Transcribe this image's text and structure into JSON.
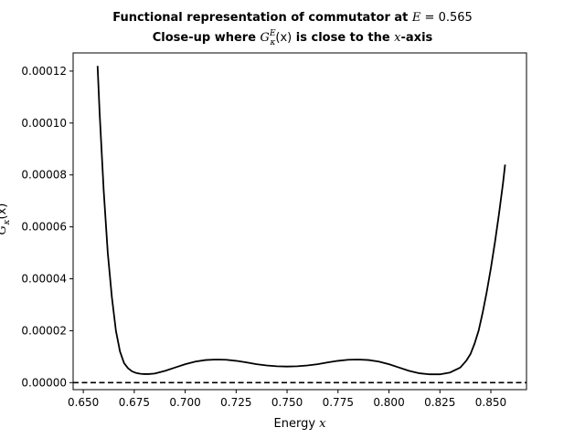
{
  "chart_data": {
    "type": "line",
    "title_line1": {
      "text": "Functional representation of commutator at ",
      "math_var": "E",
      "math_rest": " = 0.565"
    },
    "title_line2": {
      "pre": "Close-up where ",
      "G": "G",
      "sup": "E",
      "sub": "κ",
      "arg": "(x)",
      "mid": " is close to the ",
      "xvar": "x",
      "post": "-axis"
    },
    "xlabel": {
      "text": "Energy ",
      "math_var": "x"
    },
    "ylabel": {
      "G": "G",
      "sup": "E",
      "sub": "κ",
      "arg": "(x)"
    },
    "xlim": [
      0.645,
      0.8675
    ],
    "ylim": [
      -2.7e-06,
      0.000127
    ],
    "xticks": [
      0.65,
      0.675,
      0.7,
      0.725,
      0.75,
      0.775,
      0.8,
      0.825,
      0.85
    ],
    "xtick_labels": [
      "0.650",
      "0.675",
      "0.700",
      "0.725",
      "0.750",
      "0.775",
      "0.800",
      "0.825",
      "0.850"
    ],
    "yticks": [
      0,
      2e-05,
      4e-05,
      6e-05,
      8e-05,
      0.0001,
      0.00012
    ],
    "ytick_labels": [
      "0.00000",
      "0.00002",
      "0.00004",
      "0.00006",
      "0.00008",
      "0.00010",
      "0.00012"
    ],
    "grid": false,
    "colors": {
      "curve": "#000000",
      "zero_line": "#000000"
    },
    "series": [
      {
        "style": "solid",
        "x": [
          0.657,
          0.658,
          0.66,
          0.662,
          0.664,
          0.666,
          0.668,
          0.67,
          0.672,
          0.674,
          0.676,
          0.678,
          0.68,
          0.682,
          0.685,
          0.69,
          0.695,
          0.7,
          0.705,
          0.71,
          0.715,
          0.72,
          0.725,
          0.73,
          0.735,
          0.74,
          0.745,
          0.75,
          0.755,
          0.76,
          0.765,
          0.77,
          0.775,
          0.78,
          0.785,
          0.79,
          0.795,
          0.8,
          0.805,
          0.81,
          0.815,
          0.82,
          0.825,
          0.83,
          0.835,
          0.838,
          0.84,
          0.842,
          0.844,
          0.846,
          0.848,
          0.85,
          0.852,
          0.854,
          0.856,
          0.857
        ],
        "y": [
          0.000122,
          0.000104,
          7.4e-05,
          5e-05,
          3.3e-05,
          2e-05,
          1.2e-05,
          7.5e-06,
          5.5e-06,
          4.3e-06,
          3.7e-06,
          3.4e-06,
          3.3e-06,
          3.3e-06,
          3.5e-06,
          4.5e-06,
          5.8e-06,
          7.1e-06,
          8.1e-06,
          8.7e-06,
          8.9e-06,
          8.8e-06,
          8.4e-06,
          7.8e-06,
          7.1e-06,
          6.6e-06,
          6.3e-06,
          6.2e-06,
          6.3e-06,
          6.6e-06,
          7.1e-06,
          7.8e-06,
          8.4e-06,
          8.8e-06,
          8.9e-06,
          8.7e-06,
          8.1e-06,
          7.1e-06,
          5.8e-06,
          4.5e-06,
          3.6e-06,
          3.2e-06,
          3.2e-06,
          3.9e-06,
          5.8e-06,
          8.5e-06,
          1.1e-05,
          1.5e-05,
          2e-05,
          2.7e-05,
          3.5e-05,
          4.4e-05,
          5.4e-05,
          6.5e-05,
          7.7e-05,
          8.4e-05
        ]
      },
      {
        "style": "dashed",
        "x": [
          0.645,
          0.8675
        ],
        "y": [
          0,
          0
        ]
      }
    ]
  }
}
